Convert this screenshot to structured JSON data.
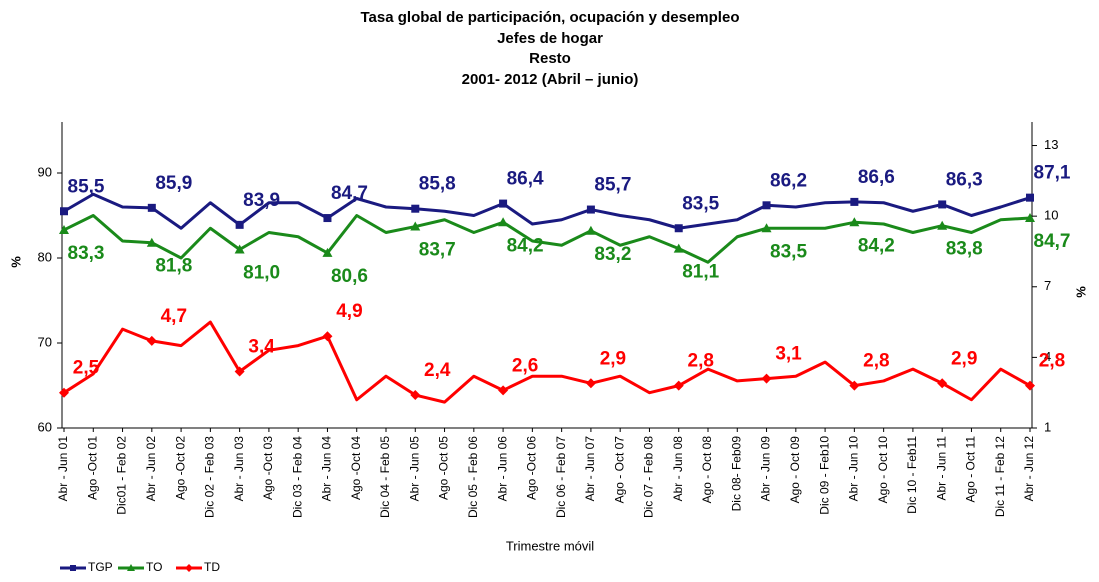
{
  "chart_data": {
    "type": "line",
    "title": "Tasa global de participación, ocupación y desempleo",
    "subtitle": [
      "Jefes de hogar",
      "Resto",
      "2001- 2012 (Abril – junio)"
    ],
    "x_label": "Trimestre móvil",
    "y_label": "%",
    "y2_label": "%",
    "categories": [
      "Abr - Jun 01",
      "Ago -Oct 01",
      "Dic01 - Feb 02",
      "Abr - Jun 02",
      "Ago -Oct 02",
      "Dic 02 - Feb 03",
      "Abr - Jun 03",
      "Ago -Oct 03",
      "Dic 03 - Feb 04",
      "Abr - Jun 04",
      "Ago -Oct 04",
      "Dic 04 - Feb 05",
      "Abr - Jun 05",
      "Ago -Oct 05",
      "Dic 05 - Feb 06",
      "Abr - Jun 06",
      "Ago -Oct 06",
      "Dic 06 - Feb 07",
      "Abr - Jun 07",
      "Ago - Oct 07",
      "Dic 07 - Feb 08",
      "Abr - Jun 08",
      "Ago - Oct 08",
      "Dic 08- Feb09",
      "Abr - Jun 09",
      "Ago - Oct 09",
      "Dic 09 - Feb10",
      "Abr - Jun 10",
      "Ago - Oct 10",
      "Dic 10 - Feb11",
      "Abr - Jun 11",
      "Ago - Oct 11",
      "Dic 11 - Feb 12",
      "Abr - Jun 12"
    ],
    "ylim": [
      60,
      96
    ],
    "yticks": [
      60,
      70,
      80,
      90
    ],
    "y2lim": [
      1,
      14
    ],
    "y2ticks": [
      1,
      4,
      7,
      10,
      13
    ],
    "series": [
      {
        "name": "TGP",
        "color": "#1a1a80",
        "marker": "square",
        "label_position": "above",
        "values": [
          85.5,
          87.5,
          86,
          85.9,
          83.5,
          86.5,
          83.9,
          86.5,
          86.5,
          84.7,
          87,
          86,
          85.8,
          85.5,
          85,
          86.4,
          84,
          84.5,
          85.7,
          85,
          84.5,
          83.5,
          84,
          84.5,
          86.2,
          86,
          86.5,
          86.6,
          86.5,
          85.5,
          86.3,
          85,
          86,
          87.1
        ],
        "value_labels": [
          "85,5",
          null,
          null,
          "85,9",
          null,
          null,
          "83,9",
          null,
          null,
          "84,7",
          null,
          null,
          "85,8",
          null,
          null,
          "86,4",
          null,
          null,
          "85,7",
          null,
          null,
          "83,5",
          null,
          null,
          "86,2",
          null,
          null,
          "86,6",
          null,
          null,
          "86,3",
          null,
          null,
          "87,1"
        ]
      },
      {
        "name": "TO",
        "color": "#1a8a1a",
        "marker": "triangle",
        "label_position": "below",
        "values": [
          83.3,
          85,
          82,
          81.8,
          80,
          83.5,
          81.0,
          83,
          82.5,
          80.6,
          85,
          83,
          83.7,
          84.5,
          83,
          84.2,
          82,
          81.5,
          83.2,
          81.5,
          82.5,
          81.1,
          79.5,
          82.5,
          83.5,
          83.5,
          83.5,
          84.2,
          84,
          83,
          83.8,
          83,
          84.5,
          84.7
        ],
        "value_labels": [
          "83,3",
          null,
          null,
          "81,8",
          null,
          null,
          "81,0",
          null,
          null,
          "80,6",
          null,
          null,
          "83,7",
          null,
          null,
          "84,2",
          null,
          null,
          "83,2",
          null,
          null,
          "81,1",
          null,
          null,
          "83,5",
          null,
          null,
          "84,2",
          null,
          null,
          "83,8",
          null,
          null,
          "84,7"
        ]
      },
      {
        "name": "TD",
        "color": "#ff0000",
        "marker": "diamond",
        "axis": "y2",
        "label_position": "above",
        "values": [
          2.5,
          3.3,
          5.2,
          4.7,
          4.5,
          5.5,
          3.4,
          4.3,
          4.5,
          4.9,
          2.2,
          3.2,
          2.4,
          2.1,
          3.2,
          2.6,
          3.2,
          3.2,
          2.9,
          3.2,
          2.5,
          2.8,
          3.5,
          3.0,
          3.1,
          3.2,
          3.8,
          2.8,
          3.0,
          3.5,
          2.9,
          2.2,
          3.5,
          2.8
        ],
        "value_labels": [
          "2,5",
          null,
          null,
          "4,7",
          null,
          null,
          "3,4",
          null,
          null,
          "4,9",
          null,
          null,
          "2,4",
          null,
          null,
          "2,6",
          null,
          null,
          "2,9",
          null,
          null,
          "2,8",
          null,
          null,
          "3,1",
          null,
          null,
          "2,8",
          null,
          null,
          "2,9",
          null,
          null,
          "2,8"
        ]
      }
    ],
    "legend": "bottom-left"
  }
}
